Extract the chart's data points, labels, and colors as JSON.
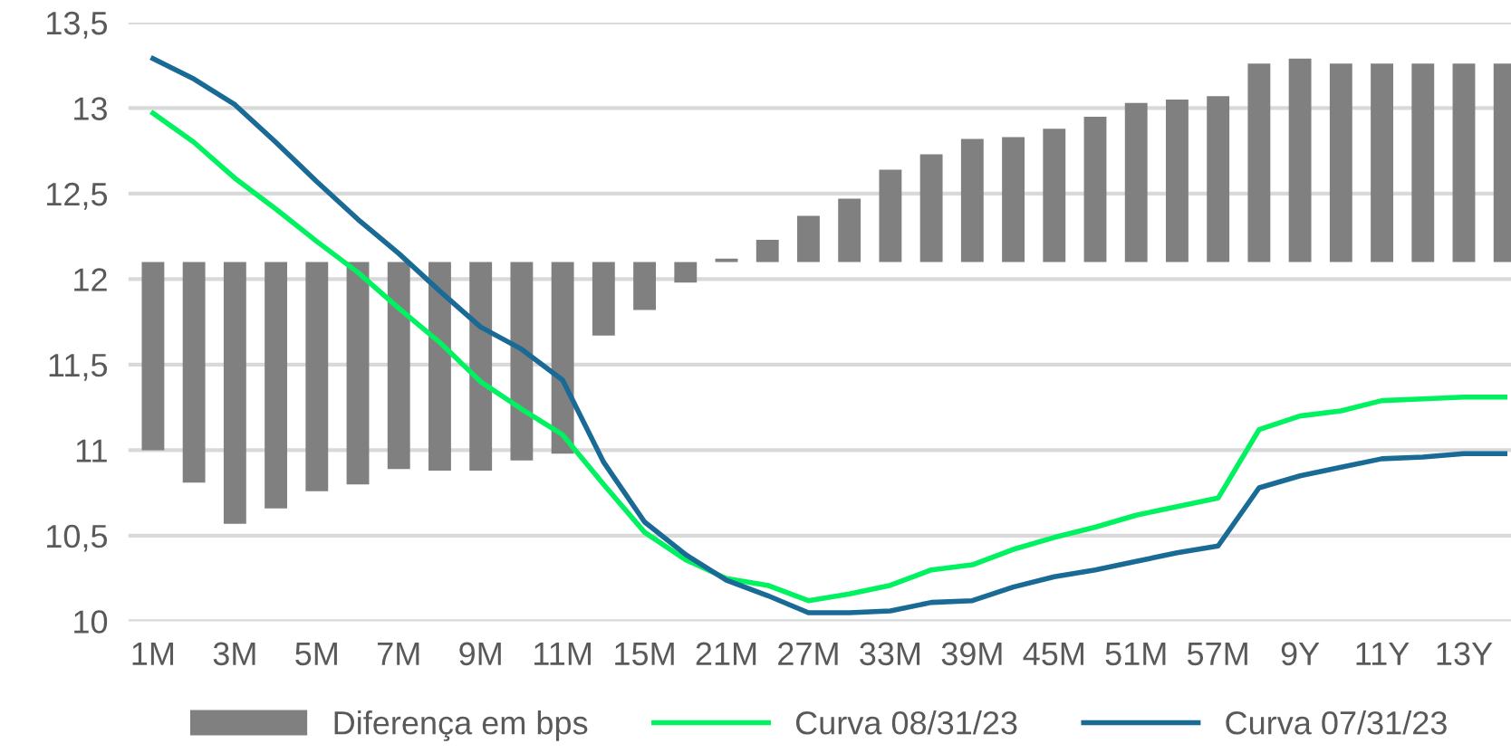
{
  "chart_data": {
    "type": "line",
    "categories": [
      "1M",
      null,
      "3M",
      null,
      "5M",
      null,
      "7M",
      null,
      "9M",
      null,
      "11M",
      null,
      "15M",
      null,
      "21M",
      null,
      "27M",
      null,
      "33M",
      null,
      "39M",
      null,
      "45M",
      null,
      "51M",
      null,
      "57M",
      null,
      "9Y",
      null,
      "11Y",
      null,
      "13Y",
      null
    ],
    "series": [
      {
        "name": "Diferença em bps",
        "type": "bar",
        "color": "#808080",
        "base": [
          12.1,
          12.1,
          12.1,
          12.1,
          12.1,
          12.1,
          12.1,
          12.1,
          12.1,
          12.1,
          12.1,
          12.1,
          12.1,
          12.1,
          12.1,
          12.1,
          12.1,
          12.1,
          12.1,
          12.1,
          12.1,
          12.1,
          12.1,
          12.1,
          12.1,
          12.1,
          12.1,
          12.1,
          12.1,
          12.1,
          12.1,
          12.1,
          12.1,
          12.1
        ],
        "values": [
          -1.1,
          -1.29,
          -1.53,
          -1.44,
          -1.34,
          -1.3,
          -1.21,
          -1.22,
          -1.22,
          -1.16,
          -1.12,
          -0.43,
          -0.28,
          -0.12,
          0.02,
          0.13,
          0.27,
          0.37,
          0.54,
          0.63,
          0.72,
          0.73,
          0.78,
          0.85,
          0.93,
          0.95,
          0.97,
          1.16,
          1.19,
          1.16,
          1.16,
          1.16,
          1.16,
          1.16
        ]
      },
      {
        "name": "Curva 08/31/23",
        "color": "#00f260",
        "values": [
          12.97,
          12.8,
          12.59,
          12.41,
          12.22,
          12.04,
          11.83,
          11.63,
          11.4,
          11.24,
          11.09,
          10.8,
          10.52,
          10.36,
          10.25,
          10.21,
          10.12,
          10.16,
          10.21,
          10.3,
          10.33,
          10.42,
          10.49,
          10.55,
          10.62,
          10.67,
          10.72,
          11.12,
          11.2,
          11.23,
          11.29,
          11.3,
          11.31,
          11.31
        ]
      },
      {
        "name": "Curva 07/31/23",
        "color": "#1a6a96",
        "values": [
          13.29,
          13.17,
          13.02,
          12.8,
          12.57,
          12.35,
          12.15,
          11.93,
          11.72,
          11.59,
          11.41,
          10.93,
          10.58,
          10.39,
          10.24,
          10.15,
          10.05,
          10.05,
          10.06,
          10.11,
          10.12,
          10.2,
          10.26,
          10.3,
          10.35,
          10.4,
          10.44,
          10.78,
          10.85,
          10.9,
          10.95,
          10.96,
          10.98,
          10.98
        ]
      }
    ],
    "ylim": [
      10,
      13.5
    ],
    "yticks": [
      10,
      {
        "value": 10.5,
        "label": "10,5"
      },
      11,
      {
        "value": 11.5,
        "label": "11,5"
      },
      12,
      {
        "value": 12.5,
        "label": "12,5"
      },
      13,
      {
        "value": 13.5,
        "label": "13,5"
      }
    ],
    "grid": "y",
    "legend": "bottom",
    "marker": "none",
    "line_style": "solid"
  }
}
